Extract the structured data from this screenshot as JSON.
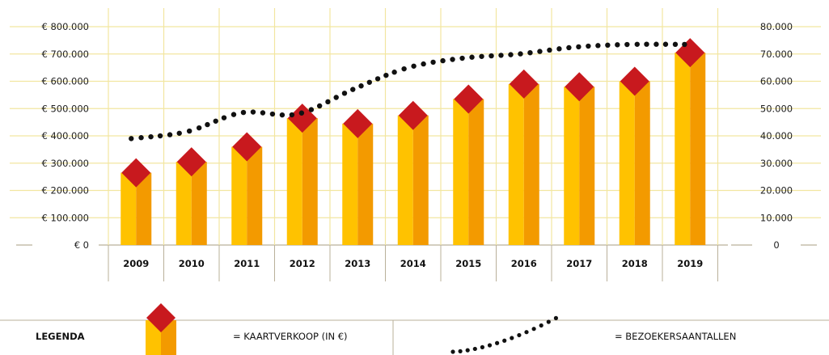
{
  "chart_data": {
    "type": "bar",
    "categories": [
      "2009",
      "2010",
      "2011",
      "2012",
      "2013",
      "2014",
      "2015",
      "2016",
      "2017",
      "2018",
      "2019"
    ],
    "series": [
      {
        "name": "= KAARTVERKOOP (IN €)",
        "axis": "left",
        "kind": "bar",
        "values": [
          265000,
          305000,
          360000,
          465000,
          445000,
          475000,
          535000,
          590000,
          580000,
          600000,
          705000
        ]
      },
      {
        "name": "= BEZOEKERSAANTALLEN",
        "axis": "right",
        "kind": "dotted-line",
        "values": [
          39000,
          41500,
          48500,
          48000,
          57000,
          65000,
          68500,
          70000,
          72500,
          73500,
          73500
        ]
      }
    ],
    "y_left": {
      "ylim": [
        0,
        800000
      ],
      "tick_labels": [
        "€ 0",
        "€ 100.000",
        "€ 200.000",
        "€ 300.000",
        "€ 400.000",
        "€ 500.000",
        "€ 600.000",
        "€ 700.000",
        "€ 800.000"
      ]
    },
    "y_right": {
      "ylim": [
        0,
        80000
      ],
      "tick_labels": [
        "0",
        "10.000",
        "20.000",
        "30.000",
        "40.000",
        "50.000",
        "60.000",
        "70.000",
        "80.000"
      ]
    },
    "grid": true,
    "legend": {
      "placement": "bottom",
      "title": "LEGENDA"
    },
    "colors": {
      "bar_light": "#FFC200",
      "bar_dark": "#F39A00",
      "marker": "#C8191E",
      "line": "#111111",
      "grid": "#F2E6A0",
      "divider": "#B9B09A"
    }
  }
}
